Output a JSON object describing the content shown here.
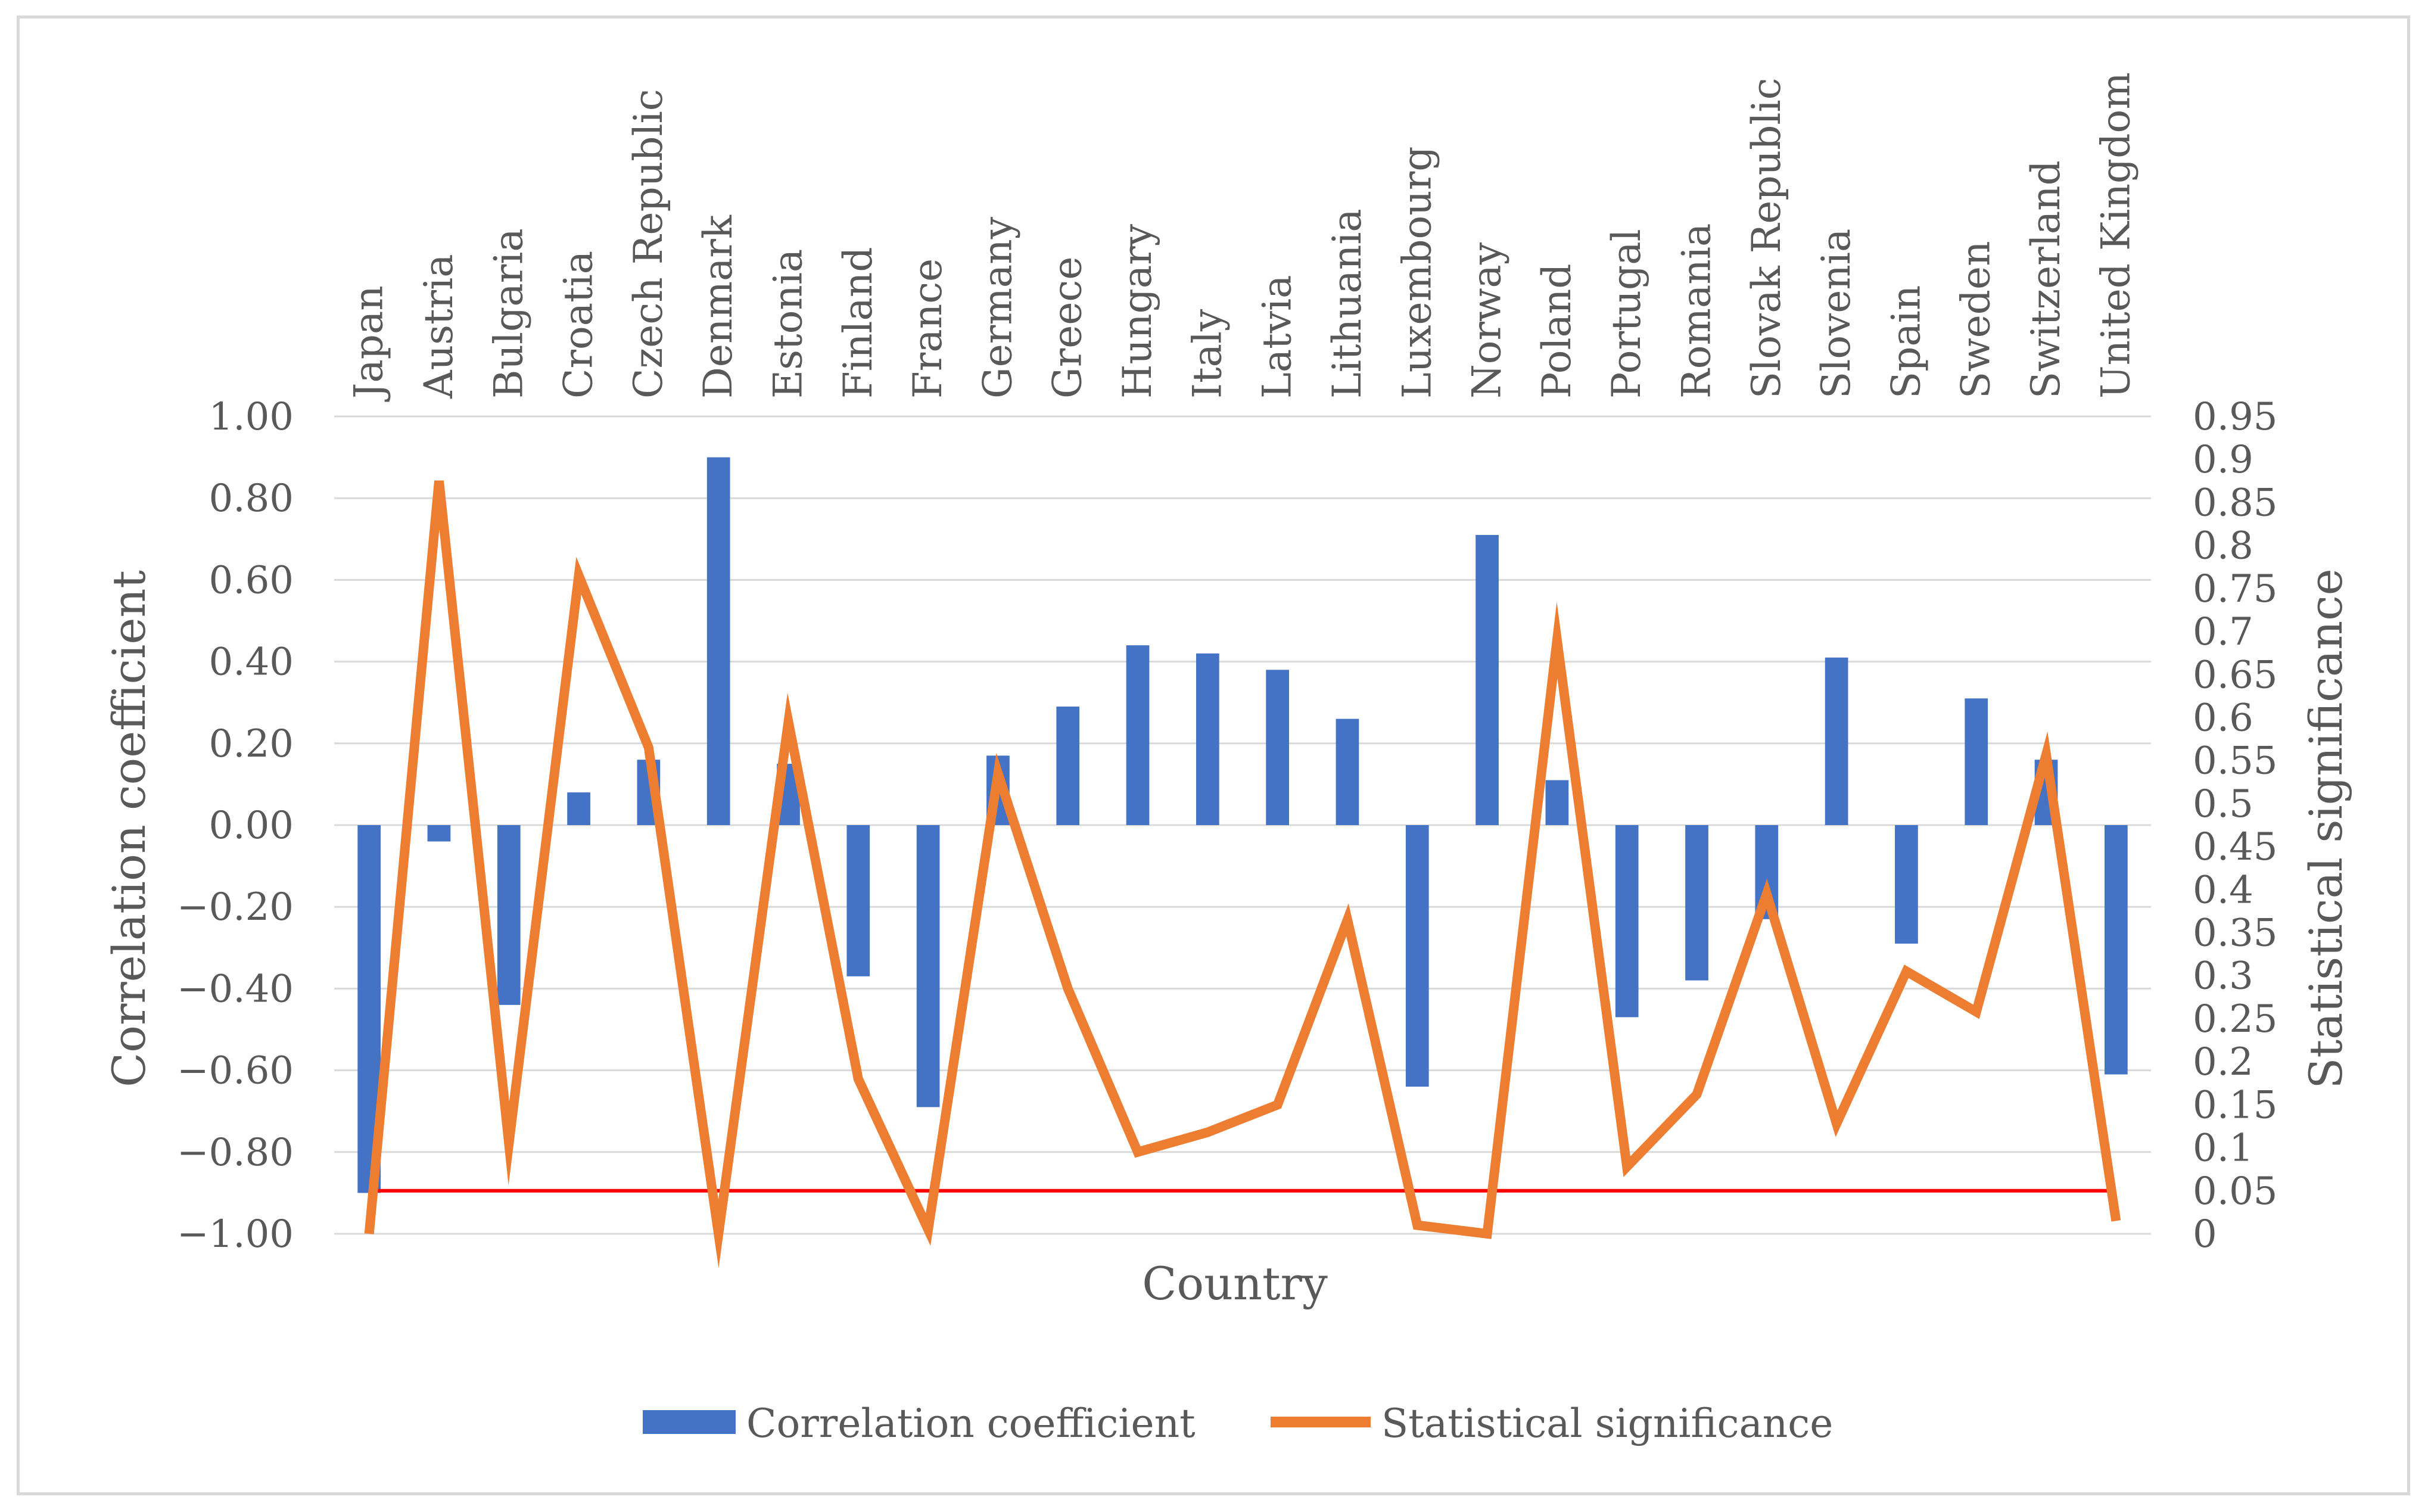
{
  "chart_data": {
    "type": "bar",
    "title": "",
    "xlabel": "Country",
    "ylabel": "Correlation coefficient",
    "y2label": "Statistical significance",
    "ylim": [
      -1.0,
      1.0
    ],
    "y2lim": [
      0,
      0.95
    ],
    "yticks": [
      "1.00",
      "0.80",
      "0.60",
      "0.40",
      "0.20",
      "0.00",
      "−0.20",
      "−0.40",
      "−0.60",
      "−0.80",
      "−1.00"
    ],
    "y2ticks": [
      "0.95",
      "0.9",
      "0.85",
      "0.8",
      "0.75",
      "0.7",
      "0.65",
      "0.6",
      "0.55",
      "0.5",
      "0.45",
      "0.4",
      "0.35",
      "0.3",
      "0.25",
      "0.2",
      "0.15",
      "0.1",
      "0.05",
      "0"
    ],
    "categories": [
      "Japan",
      "Austria",
      "Bulgaria",
      "Croatia",
      "Czech Republic",
      "Denmark",
      "Estonia",
      "Finland",
      "France",
      "Germany",
      "Greece",
      "Hungary",
      "Italy",
      "Latvia",
      "Lithuania",
      "Luxembourg",
      "Norway",
      "Poland",
      "Portugal",
      "Romania",
      "Slovak Republic",
      "Slovenia",
      "Spain",
      "Sweden",
      "Switzerland",
      "United Kingdom"
    ],
    "series": [
      {
        "name": "Correlation coefficient",
        "type": "bar",
        "axis": "left",
        "color": "#4472c4",
        "values": [
          -0.9,
          -0.04,
          -0.44,
          0.08,
          0.16,
          0.9,
          0.15,
          -0.37,
          -0.69,
          0.17,
          0.29,
          0.44,
          0.42,
          0.38,
          0.26,
          -0.64,
          0.71,
          0.11,
          -0.47,
          -0.38,
          -0.23,
          0.41,
          -0.29,
          0.31,
          0.16,
          -0.61
        ]
      },
      {
        "name": "Statistical significance",
        "type": "line",
        "axis": "right",
        "color": "#ed7d31",
        "values": [
          0.0,
          0.875,
          0.105,
          0.765,
          0.565,
          0.0,
          0.595,
          0.18,
          0.005,
          0.535,
          0.285,
          0.095,
          0.118,
          0.15,
          0.365,
          0.01,
          0.0,
          0.69,
          0.078,
          0.162,
          0.395,
          0.128,
          0.305,
          0.258,
          0.557,
          0.015
        ]
      }
    ],
    "reference_line": {
      "axis": "right",
      "value": 0.05,
      "color": "#ff0000"
    },
    "legend": {
      "position": "bottom",
      "entries": [
        "Correlation coefficient",
        "Statistical significance"
      ]
    },
    "grid": true
  }
}
